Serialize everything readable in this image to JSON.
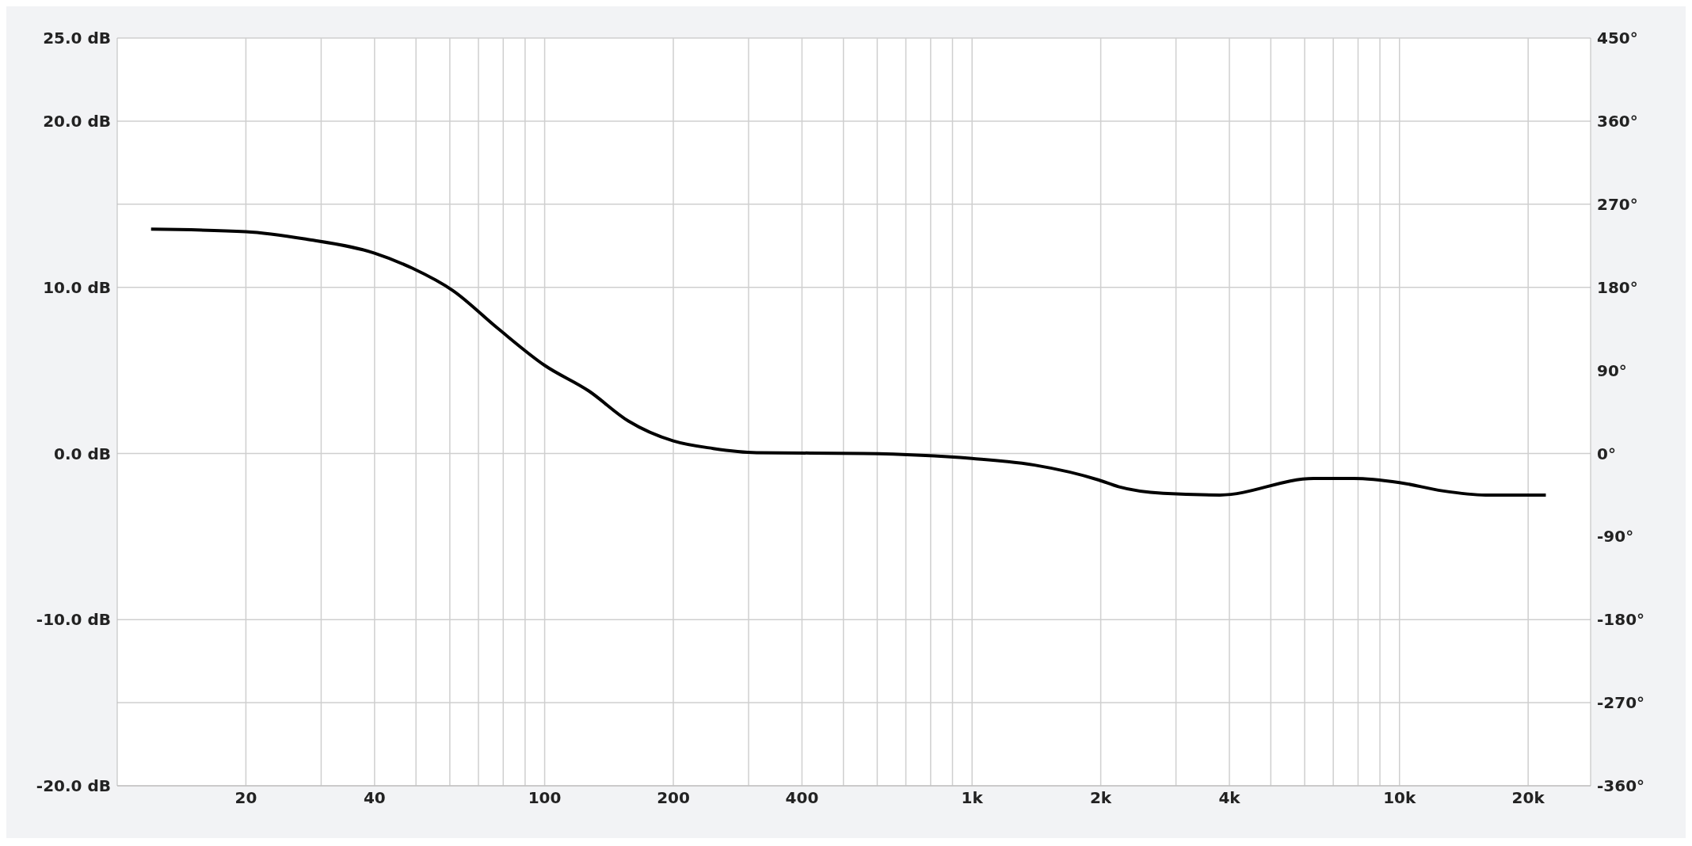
{
  "chart_data": {
    "type": "line",
    "log": "x",
    "grid": true,
    "marker": "none",
    "line_style": "solid",
    "xlim": [
      10,
      28000
    ],
    "xticks": [
      {
        "value": 20,
        "label": "20"
      },
      {
        "value": 30,
        "label": null
      },
      {
        "value": 40,
        "label": "40"
      },
      {
        "value": 50,
        "label": null
      },
      {
        "value": 60,
        "label": null
      },
      {
        "value": 70,
        "label": null
      },
      {
        "value": 80,
        "label": null
      },
      {
        "value": 90,
        "label": null
      },
      {
        "value": 100,
        "label": "100"
      },
      {
        "value": 200,
        "label": "200"
      },
      {
        "value": 300,
        "label": null
      },
      {
        "value": 400,
        "label": "400"
      },
      {
        "value": 500,
        "label": null
      },
      {
        "value": 600,
        "label": null
      },
      {
        "value": 700,
        "label": null
      },
      {
        "value": 800,
        "label": null
      },
      {
        "value": 900,
        "label": null
      },
      {
        "value": 1000,
        "label": "1k"
      },
      {
        "value": 2000,
        "label": "2k"
      },
      {
        "value": 3000,
        "label": null
      },
      {
        "value": 4000,
        "label": "4k"
      },
      {
        "value": 5000,
        "label": null
      },
      {
        "value": 6000,
        "label": null
      },
      {
        "value": 7000,
        "label": null
      },
      {
        "value": 8000,
        "label": null
      },
      {
        "value": 9000,
        "label": null
      },
      {
        "value": 10000,
        "label": "10k"
      },
      {
        "value": 20000,
        "label": "20k"
      }
    ],
    "ylim": [
      -20,
      25
    ],
    "yticks": [
      {
        "value": -20,
        "label": "-20.0 dB"
      },
      {
        "value": -15,
        "label": null
      },
      {
        "value": -10,
        "label": "-10.0 dB"
      },
      {
        "value": 0,
        "label": "0.0 dB"
      },
      {
        "value": 10,
        "label": "10.0 dB"
      },
      {
        "value": 15,
        "label": null
      },
      {
        "value": 20,
        "label": "20.0 dB"
      },
      {
        "value": 25,
        "label": "25.0 dB"
      }
    ],
    "y2lim": [
      -360,
      450
    ],
    "y2ticks": [
      {
        "value": -360,
        "label": "-360°"
      },
      {
        "value": -270,
        "label": "-270°"
      },
      {
        "value": -180,
        "label": "-180°"
      },
      {
        "value": -90,
        "label": "-90°"
      },
      {
        "value": 0,
        "label": "0°"
      },
      {
        "value": 90,
        "label": "90°"
      },
      {
        "value": 180,
        "label": "180°"
      },
      {
        "value": 270,
        "label": "270°"
      },
      {
        "value": 360,
        "label": "360°"
      },
      {
        "value": 450,
        "label": "450°"
      }
    ],
    "x": [
      12,
      20,
      27.6,
      40,
      49,
      61,
      77.5,
      100,
      127,
      157,
      200,
      248,
      313,
      557,
      1000,
      1400,
      1980,
      2200,
      2800,
      3800,
      6300,
      7800,
      10000,
      12600,
      15900,
      22000
    ],
    "series": [
      {
        "color": "#000000",
        "values": [
          13.5,
          13.35,
          12.9,
          12.05,
          11.15,
          9.8,
          7.55,
          5.3,
          3.75,
          1.95,
          0.75,
          0.3,
          0.05,
          0,
          -0.3,
          -0.7,
          -1.6,
          -2,
          -2.4,
          -2.5,
          -1.5,
          -1.5,
          -1.75,
          -2.25,
          -2.5,
          -2.5
        ]
      }
    ]
  }
}
